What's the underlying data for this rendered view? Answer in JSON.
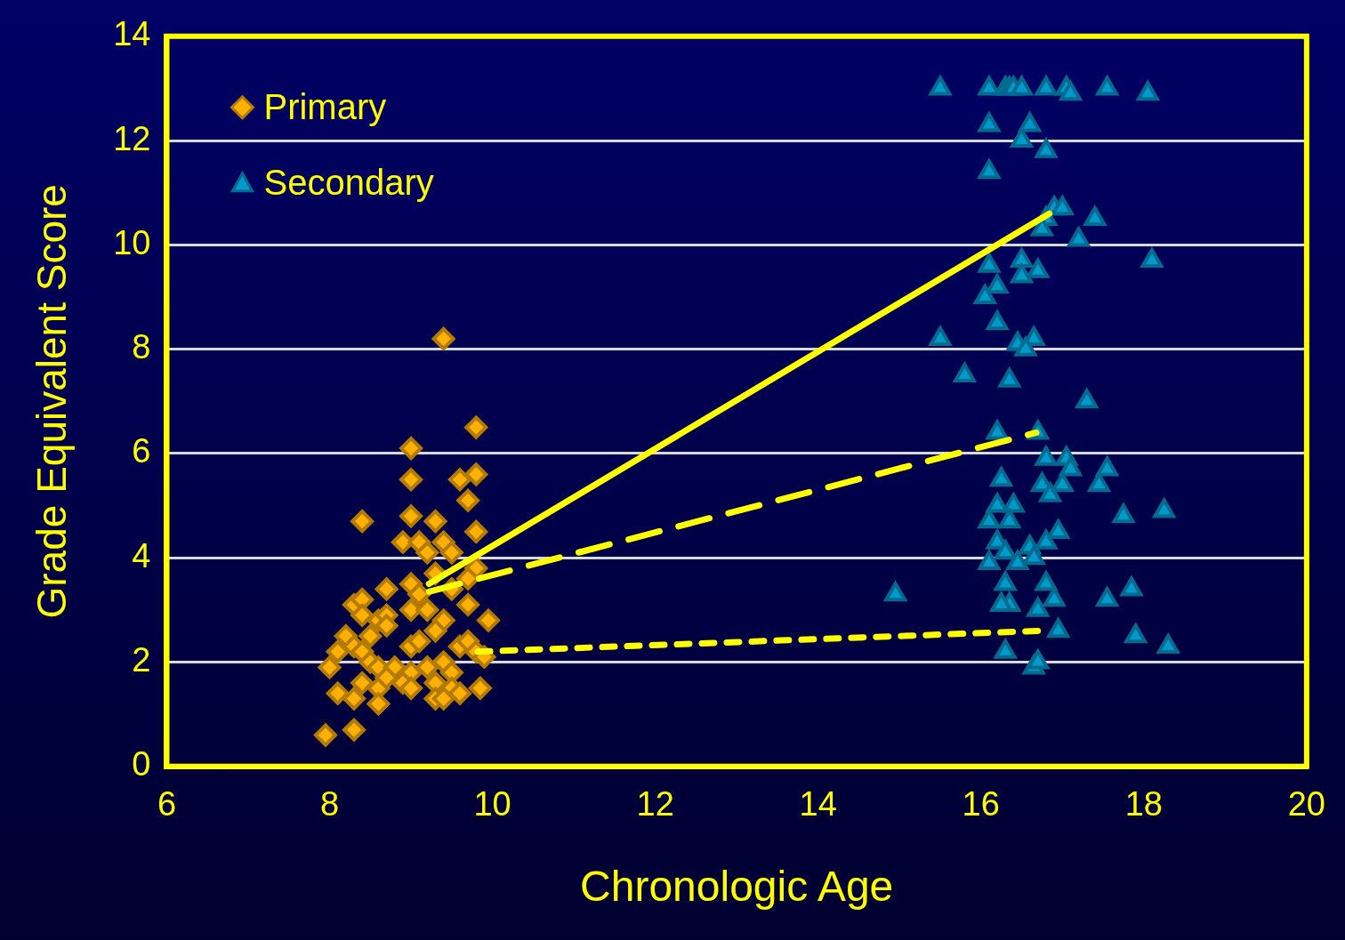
{
  "chart_data": {
    "type": "scatter",
    "xlabel": "Chronologic Age",
    "ylabel": "Grade Equivalent Score",
    "xlim": [
      6,
      20
    ],
    "xticks": [
      6,
      8,
      10,
      12,
      14,
      16,
      18,
      20
    ],
    "ylim": [
      0,
      14
    ],
    "yticks": [
      0,
      2,
      4,
      6,
      8,
      10,
      12,
      14
    ],
    "grid": "y",
    "legend": "top left",
    "series": [
      {
        "name": "Primary",
        "marker": "diamond",
        "color": "#ffb000",
        "x": [
          9.4,
          9.8,
          9.0,
          9.0,
          9.6,
          9.8,
          9.7,
          8.4,
          9.0,
          9.3,
          9.8,
          8.9,
          9.1,
          9.4,
          9.2,
          9.5,
          9.3,
          9.8,
          9.7,
          9.5,
          8.7,
          9.0,
          9.1,
          8.3,
          8.4,
          8.4,
          8.6,
          8.7,
          8.7,
          9.0,
          9.2,
          9.4,
          9.7,
          9.95,
          8.5,
          8.2,
          8.1,
          8.3,
          8.4,
          9.0,
          9.1,
          9.3,
          9.6,
          9.7,
          9.8,
          9.9,
          8.0,
          8.5,
          8.6,
          8.8,
          9.0,
          9.2,
          9.4,
          9.5,
          8.4,
          8.6,
          8.7,
          8.9,
          9.3,
          9.5,
          8.1,
          8.3,
          8.6,
          9.0,
          9.3,
          9.4,
          9.6,
          9.85,
          7.95,
          8.3
        ],
        "values": [
          8.2,
          6.5,
          6.1,
          5.5,
          5.5,
          5.6,
          5.1,
          4.7,
          4.8,
          4.7,
          4.5,
          4.3,
          4.3,
          4.3,
          4.1,
          4.1,
          3.7,
          3.8,
          3.6,
          3.4,
          3.4,
          3.5,
          3.3,
          3.1,
          3.2,
          2.9,
          2.8,
          2.9,
          2.7,
          3.0,
          3.0,
          2.8,
          3.1,
          2.8,
          2.5,
          2.5,
          2.2,
          2.3,
          2.2,
          2.3,
          2.4,
          2.6,
          2.3,
          2.4,
          2.2,
          2.1,
          1.9,
          2.0,
          1.9,
          1.9,
          1.8,
          1.9,
          2.0,
          1.8,
          1.6,
          1.5,
          1.7,
          1.6,
          1.6,
          1.5,
          1.4,
          1.3,
          1.2,
          1.5,
          1.3,
          1.3,
          1.4,
          1.5,
          0.6,
          0.7
        ]
      },
      {
        "name": "Secondary",
        "marker": "triangle",
        "color": "#0099cc",
        "x": [
          15.5,
          16.1,
          16.3,
          16.35,
          16.4,
          16.5,
          16.8,
          17.05,
          17.1,
          17.55,
          18.05,
          16.1,
          16.6,
          16.5,
          16.8,
          16.1,
          16.9,
          17.0,
          16.8,
          16.75,
          17.4,
          17.2,
          18.1,
          16.1,
          16.5,
          16.7,
          16.5,
          16.2,
          16.05,
          16.2,
          15.5,
          16.45,
          16.65,
          16.55,
          15.8,
          16.35,
          17.3,
          16.2,
          16.7,
          16.25,
          16.8,
          17.05,
          17.1,
          17.55,
          16.75,
          16.85,
          17.0,
          17.45,
          16.1,
          16.2,
          16.4,
          16.35,
          17.75,
          18.25,
          16.2,
          16.1,
          16.3,
          16.45,
          16.6,
          16.65,
          16.8,
          16.95,
          16.3,
          16.35,
          16.25,
          16.8,
          16.9,
          16.7,
          16.95,
          17.55,
          17.85,
          17.9,
          18.3,
          16.3,
          16.65,
          16.7,
          14.95
        ],
        "values": [
          13,
          13,
          13,
          13,
          13,
          13,
          13,
          13,
          12.9,
          13,
          12.9,
          12.3,
          12.3,
          12.0,
          11.8,
          11.4,
          10.7,
          10.7,
          10.5,
          10.3,
          10.5,
          10.1,
          9.7,
          9.6,
          9.7,
          9.5,
          9.4,
          9.2,
          9.0,
          8.5,
          8.2,
          8.1,
          8.2,
          8.0,
          7.5,
          7.4,
          7.0,
          6.4,
          6.4,
          5.5,
          5.9,
          5.9,
          5.7,
          5.7,
          5.4,
          5.2,
          5.4,
          5.4,
          4.7,
          5.0,
          5.0,
          4.7,
          4.8,
          4.9,
          4.3,
          3.9,
          4.1,
          3.9,
          4.2,
          4.0,
          4.3,
          4.5,
          3.5,
          3.1,
          3.1,
          3.5,
          3.2,
          3.0,
          2.6,
          3.2,
          3.4,
          2.5,
          2.3,
          2.2,
          1.9,
          2.0,
          3.3
        ]
      },
      {
        "type": "line",
        "line_style": "solid",
        "marker": "none",
        "color": "#ffff00",
        "x": [
          9.22,
          16.84
        ],
        "values": [
          3.5,
          10.6
        ]
      },
      {
        "type": "line",
        "line_style": "dashed",
        "marker": "none",
        "color": "#ffff00",
        "x": [
          9.22,
          16.68
        ],
        "values": [
          3.35,
          6.4
        ]
      },
      {
        "type": "line",
        "line_style": "dotted",
        "marker": "none",
        "color": "#ffff00",
        "x": [
          9.82,
          16.74
        ],
        "values": [
          2.2,
          2.6
        ]
      }
    ]
  }
}
